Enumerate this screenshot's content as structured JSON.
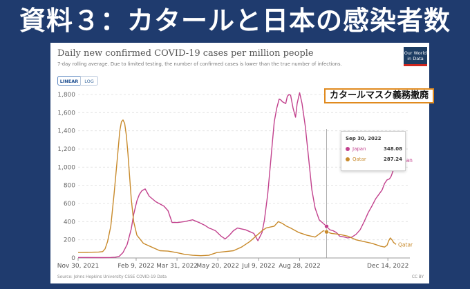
{
  "slide": {
    "title": "資料３：カタールと日本の感染者数"
  },
  "logo": {
    "line1": "Our World",
    "line2": "in Data"
  },
  "toggle": {
    "linear": "LINEAR",
    "log": "LOG"
  },
  "annotation": {
    "text": "カタールマスク義務撤廃"
  },
  "tooltip": {
    "date": "Sep 30, 2022",
    "rows": [
      {
        "name": "Japan",
        "value": "348.08"
      },
      {
        "name": "Qatar",
        "value": "287.24"
      }
    ]
  },
  "footer": {
    "source": "Source: Johns Hopkins University CSSE COVID-19 Data",
    "license": "CC BY"
  },
  "colors": {
    "japan": "#c2418d",
    "qatar": "#c88a2b",
    "grid": "#dddddd",
    "cursor": "#9a9a9a"
  },
  "chart_data": {
    "type": "line",
    "title": "Daily new confirmed COVID-19 cases per million people",
    "subtitle": "7-day rolling average. Due to limited testing, the number of confirmed cases is lower than the true number of infections.",
    "xlabel": "",
    "ylabel": "",
    "ylim": [
      0,
      1800
    ],
    "yticks": [
      0,
      200,
      400,
      600,
      800,
      1000,
      1200,
      1400,
      1600,
      1800
    ],
    "ytick_labels": [
      "0",
      "200",
      "400",
      "600",
      "800",
      "1,000",
      "1,200",
      "1,400",
      "1,600",
      "1,800"
    ],
    "xlim": [
      0,
      389
    ],
    "xticks": [
      0,
      71,
      121,
      171,
      221,
      271,
      379
    ],
    "xtick_labels": [
      "Nov 30, 2021",
      "Feb 9, 2022",
      "Mar 31, 2022",
      "May 20, 2022",
      "Jul 9, 2022",
      "Aug 28, 2022",
      "Dec 14, 2022"
    ],
    "cursor_x": 304,
    "series": [
      {
        "name": "Japan",
        "end_label": "Japan",
        "x": [
          0,
          30,
          40,
          45,
          50,
          55,
          60,
          65,
          68,
          72,
          75,
          78,
          82,
          87,
          95,
          105,
          110,
          115,
          122,
          130,
          135,
          140,
          148,
          155,
          160,
          163,
          168,
          175,
          180,
          185,
          190,
          195,
          200,
          205,
          210,
          215,
          220,
          225,
          228,
          232,
          235,
          238,
          240,
          243,
          246,
          248,
          250,
          254,
          256,
          258,
          260,
          263,
          266,
          268,
          271,
          274,
          278,
          282,
          286,
          290,
          295,
          300,
          304,
          308,
          312,
          316,
          320,
          326,
          330,
          335,
          340,
          345,
          350,
          355,
          360,
          364,
          368,
          372,
          375,
          378,
          381,
          383,
          385,
          387,
          389
        ],
        "y": [
          5,
          4,
          5,
          8,
          15,
          60,
          150,
          320,
          480,
          630,
          700,
          740,
          760,
          680,
          620,
          570,
          520,
          390,
          390,
          400,
          410,
          420,
          390,
          360,
          330,
          320,
          300,
          240,
          210,
          250,
          300,
          330,
          320,
          310,
          290,
          270,
          190,
          280,
          420,
          700,
          1000,
          1300,
          1500,
          1650,
          1750,
          1740,
          1720,
          1700,
          1780,
          1800,
          1790,
          1650,
          1550,
          1700,
          1820,
          1700,
          1450,
          1100,
          750,
          550,
          420,
          380,
          348.08,
          310,
          300,
          280,
          240,
          230,
          220,
          230,
          260,
          310,
          400,
          500,
          580,
          650,
          700,
          750,
          820,
          860,
          870,
          900,
          950,
          1000,
          1080
        ]
      },
      {
        "name": "Qatar",
        "end_label": "Qatar",
        "x": [
          0,
          25,
          30,
          33,
          36,
          40,
          44,
          48,
          51,
          53,
          55,
          57,
          59,
          61,
          63,
          65,
          68,
          72,
          80,
          90,
          100,
          110,
          120,
          130,
          140,
          150,
          160,
          170,
          180,
          190,
          200,
          210,
          220,
          225,
          230,
          235,
          240,
          245,
          250,
          255,
          260,
          270,
          280,
          290,
          296,
          300,
          304,
          310,
          320,
          330,
          340,
          350,
          360,
          370,
          375,
          378,
          380,
          382,
          384,
          386,
          389
        ],
        "y": [
          60,
          65,
          70,
          100,
          180,
          350,
          700,
          1100,
          1400,
          1500,
          1520,
          1480,
          1350,
          1150,
          900,
          650,
          400,
          250,
          160,
          120,
          80,
          75,
          60,
          40,
          30,
          25,
          30,
          60,
          70,
          80,
          120,
          180,
          260,
          300,
          330,
          340,
          350,
          400,
          380,
          350,
          330,
          280,
          250,
          230,
          270,
          300,
          287.24,
          270,
          260,
          240,
          200,
          180,
          160,
          130,
          120,
          140,
          190,
          220,
          200,
          170,
          150
        ]
      }
    ]
  }
}
